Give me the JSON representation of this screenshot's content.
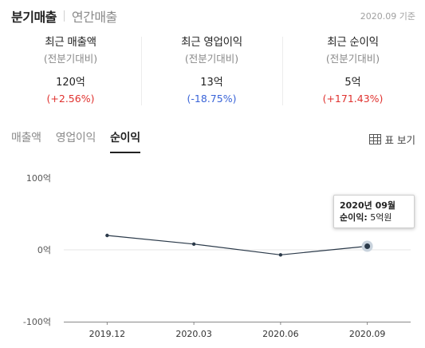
{
  "top_tabs": {
    "quarterly": "분기매출",
    "annual": "연간매출"
  },
  "as_of": "2020.09 기준",
  "metrics": [
    {
      "title": "최근 매출액",
      "sub": "(전분기대비)",
      "value": "120억",
      "change": "(+2.56%)",
      "direction": "up"
    },
    {
      "title": "최근 영업이익",
      "sub": "(전분기대비)",
      "value": "13억",
      "change": "(-18.75%)",
      "direction": "down"
    },
    {
      "title": "최근 순이익",
      "sub": "(전분기대비)",
      "value": "5억",
      "change": "(+171.43%)",
      "direction": "up"
    }
  ],
  "chart_tabs": {
    "sales": "매출액",
    "operating": "영업이익",
    "net": "순이익"
  },
  "table_view_label": "표 보기",
  "table_view_icon": "table-grid-icon",
  "colors": {
    "line": "#2b3a4a",
    "up": "#e0322f",
    "down": "#3a64d8",
    "highlight": "#c9d3dd"
  },
  "tooltip": {
    "date": "2020년 09월",
    "label": "순이익:",
    "value": "5억원"
  },
  "chart_data": {
    "type": "line",
    "categories": [
      "2019.12",
      "2020.03",
      "2020.06",
      "2020.09"
    ],
    "series": [
      {
        "values": [
          20,
          8,
          -7,
          5
        ]
      }
    ],
    "ylim": [
      -100,
      100
    ],
    "yticks": [
      100,
      0,
      -100
    ],
    "ytick_labels": [
      "100억",
      "0억",
      "-100억"
    ],
    "highlighted_index": 3,
    "grid": false
  }
}
